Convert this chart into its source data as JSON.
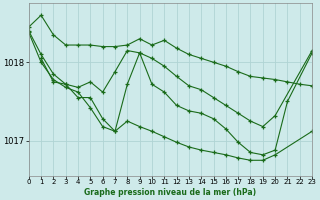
{
  "title": "Graphe pression niveau de la mer (hPa)",
  "bg_color": "#ceeaea",
  "grid_color": "#b0d4d4",
  "line_color": "#1a6b1a",
  "xlim": [
    0,
    23
  ],
  "ylim": [
    1016.55,
    1018.75
  ],
  "yticks": [
    1017.0,
    1018.0
  ],
  "xticks": [
    0,
    1,
    2,
    3,
    4,
    5,
    6,
    7,
    8,
    9,
    10,
    11,
    12,
    13,
    14,
    15,
    16,
    17,
    18,
    19,
    20,
    21,
    22,
    23
  ],
  "series": [
    {
      "x": [
        0,
        1,
        2,
        3,
        4,
        5,
        6,
        7,
        8,
        9,
        10,
        11,
        12,
        13,
        14,
        15,
        16,
        17,
        18,
        19,
        20,
        21,
        22,
        23
      ],
      "y": [
        1018.45,
        1018.6,
        1018.35,
        1018.22,
        1018.22,
        1018.22,
        1018.2,
        1018.2,
        1018.22,
        1018.3,
        1018.22,
        1018.28,
        1018.18,
        1018.1,
        1018.05,
        1018.0,
        1017.95,
        1017.88,
        1017.82,
        1017.8,
        1017.78,
        1017.75,
        1017.72,
        1017.7
      ]
    },
    {
      "x": [
        0,
        1,
        2,
        3,
        4,
        5,
        6,
        7,
        8,
        9,
        10,
        11,
        12,
        13,
        14,
        15,
        16,
        17,
        18,
        19,
        20,
        23
      ],
      "y": [
        1018.4,
        1018.1,
        1017.85,
        1017.72,
        1017.68,
        1017.75,
        1017.62,
        1017.88,
        1018.15,
        1018.12,
        1018.05,
        1017.95,
        1017.82,
        1017.7,
        1017.65,
        1017.55,
        1017.45,
        1017.35,
        1017.25,
        1017.18,
        1017.32,
        1018.15
      ]
    },
    {
      "x": [
        1,
        2,
        3,
        4,
        5,
        6,
        7,
        8,
        9,
        10,
        11,
        12,
        13,
        14,
        15,
        16,
        17,
        18,
        19,
        20,
        21,
        23
      ],
      "y": [
        1018.05,
        1017.75,
        1017.72,
        1017.55,
        1017.55,
        1017.28,
        1017.12,
        1017.72,
        1018.12,
        1017.72,
        1017.62,
        1017.45,
        1017.38,
        1017.35,
        1017.28,
        1017.15,
        1016.98,
        1016.85,
        1016.82,
        1016.88,
        1017.5,
        1018.12
      ]
    },
    {
      "x": [
        0,
        1,
        2,
        3,
        4,
        5,
        6,
        7,
        8,
        9,
        10,
        11,
        12,
        13,
        14,
        15,
        16,
        17,
        18,
        19,
        20,
        23
      ],
      "y": [
        1018.38,
        1018.0,
        1017.78,
        1017.68,
        1017.62,
        1017.42,
        1017.18,
        1017.12,
        1017.25,
        1017.18,
        1017.12,
        1017.05,
        1016.98,
        1016.92,
        1016.88,
        1016.85,
        1016.82,
        1016.78,
        1016.75,
        1016.75,
        1016.82,
        1017.12
      ]
    }
  ]
}
